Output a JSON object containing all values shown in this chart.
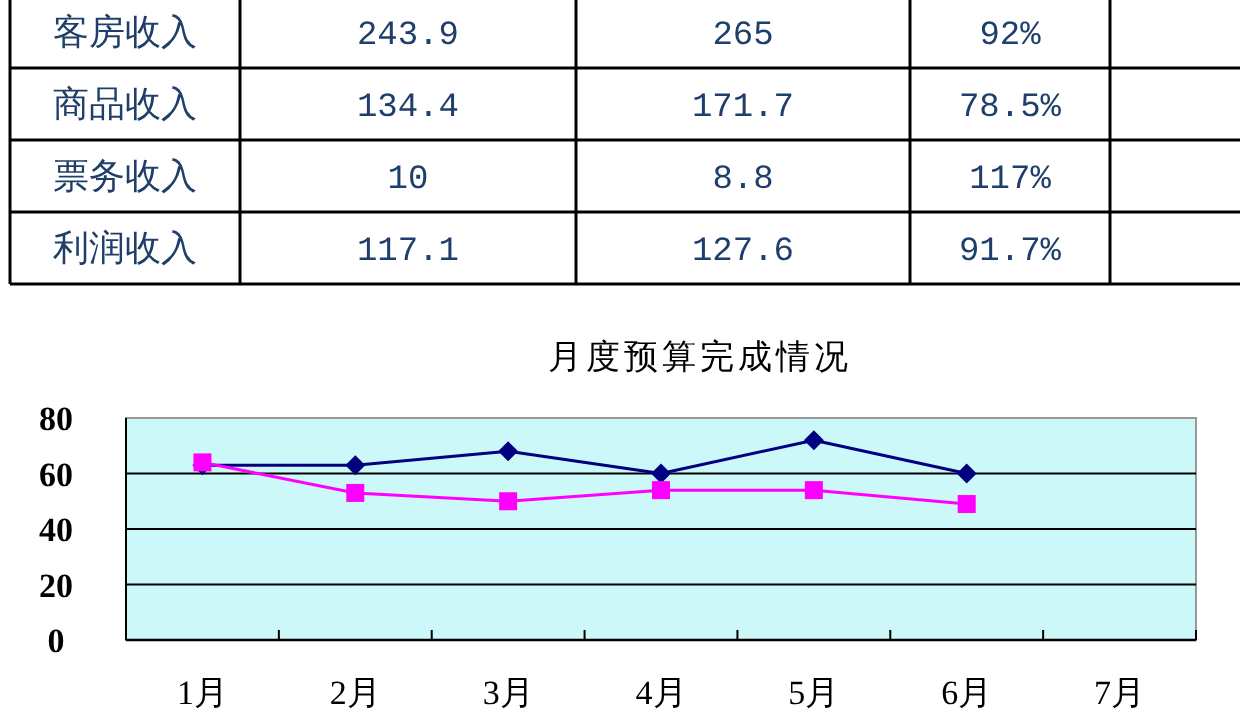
{
  "chart_data": [
    {
      "type": "other",
      "categories": [
        "客房收入",
        "商品收入",
        "票务收入",
        "利润收入"
      ],
      "annotations": [
        "243.9",
        "265",
        "92%",
        "134.4",
        "171.7",
        "78.5%",
        "10",
        "8.8",
        "117%",
        "117.1",
        "127.6",
        "91.7%"
      ]
    },
    {
      "type": "line",
      "title": "月度预算完成情况",
      "categories": [
        "1月",
        "2月",
        "3月",
        "4月",
        "5月",
        "6月",
        "7月"
      ],
      "series": [
        {
          "color": "#000080",
          "marker": "diamond",
          "values": [
            63,
            63,
            68,
            60,
            72,
            60,
            null
          ]
        },
        {
          "color": "#ff00ff",
          "marker": "square",
          "values": [
            64,
            53,
            50,
            54,
            54,
            49,
            null
          ]
        }
      ],
      "ylim": [
        0,
        80
      ],
      "yticks": [
        0,
        20,
        40,
        60,
        80
      ],
      "grid": "y"
    }
  ]
}
